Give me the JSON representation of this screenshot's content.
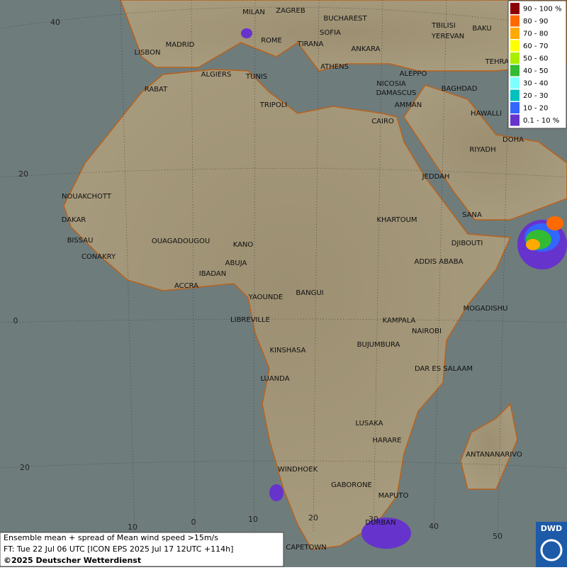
{
  "map": {
    "cities": [
      "MILAN",
      "ZAGREB",
      "BUCHAREST",
      "SOFIA",
      "ROME",
      "TIRANA",
      "MADRID",
      "LISBON",
      "ANKARA",
      "TBILISI",
      "YEREVAN",
      "BAKU",
      "TEHRAN",
      "ATHENS",
      "ALGIERS",
      "TUNIS",
      "ALEPPO",
      "RABAT",
      "NICOSIA",
      "BAGHDAD",
      "DAMASCUS",
      "TRIPOLI",
      "AMMAN",
      "HAWALLI",
      "CAIRO",
      "DOHA",
      "RIYADH",
      "NOUAKCHOTT",
      "JEDDAH",
      "SANA",
      "DAKAR",
      "KHARTOUM",
      "BISSAU",
      "DJIBOUTI",
      "OUAGADOUGOU",
      "KANO",
      "CONAKRY",
      "ABUJA",
      "ADDIS ABABA",
      "IBADAN",
      "ACCRA",
      "YAOUNDE",
      "BANGUI",
      "MOGADISHU",
      "LIBREVILLE",
      "KAMPALA",
      "NAIROBI",
      "KINSHASA",
      "BUJUMBURA",
      "DAR ES SALAAM",
      "LUANDA",
      "LUSAKA",
      "HARARE",
      "ANTANANARIVO",
      "WINDHOEK",
      "GABORONE",
      "MAPUTO",
      "DURBAN",
      "CAPETOWN"
    ],
    "graticule": {
      "lat_labels": [
        "40",
        "20",
        "0",
        "20"
      ],
      "lon_labels": [
        "10",
        "0",
        "10",
        "20",
        "30",
        "40",
        "50"
      ]
    }
  },
  "legend": {
    "items": [
      {
        "label": "90 - 100 %",
        "color": "#8b0000"
      },
      {
        "label": "80 - 90",
        "color": "#ff6a00"
      },
      {
        "label": "70 - 80",
        "color": "#ffaa00"
      },
      {
        "label": "60 - 70",
        "color": "#ffff00"
      },
      {
        "label": "50 - 60",
        "color": "#aaee00"
      },
      {
        "label": "40 - 50",
        "color": "#33bb33"
      },
      {
        "label": "30 - 40",
        "color": "#80ffff"
      },
      {
        "label": "20 - 30",
        "color": "#00c0c0"
      },
      {
        "label": "10 - 20",
        "color": "#3366ff"
      },
      {
        "label": "0.1 - 10 %",
        "color": "#6633cc"
      }
    ]
  },
  "caption": {
    "lines": [
      "Ensemble mean + spread of Mean wind speed >15m/s",
      "FT: Tue 22 Jul 06 UTC [ICON EPS 2025 Jul 17 12UTC +114h]",
      "©2025 Deutscher Wetterdienst"
    ]
  },
  "logo": "DWD"
}
